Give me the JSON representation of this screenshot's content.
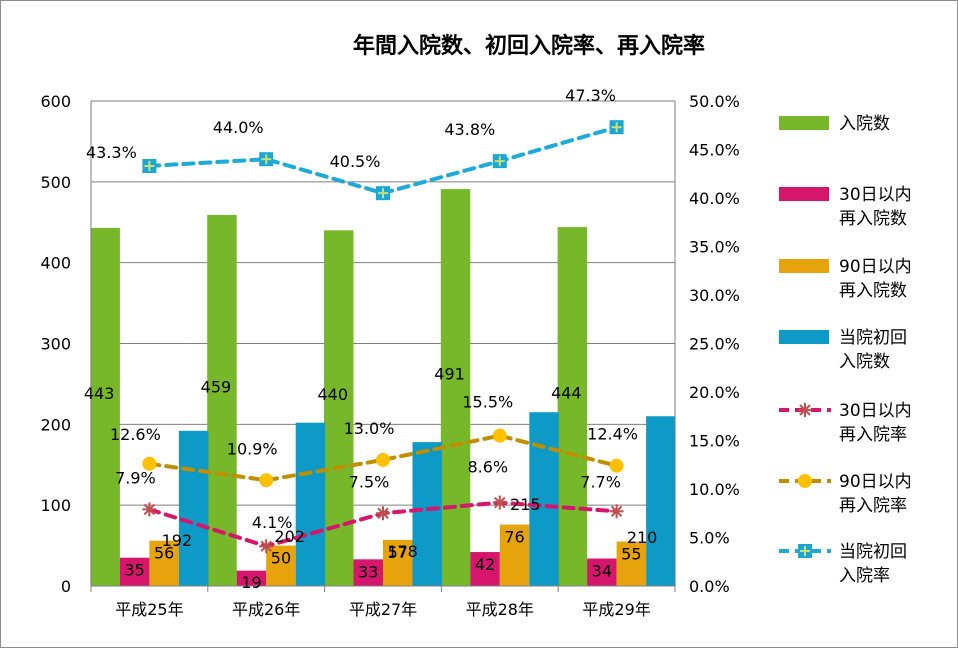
{
  "chart_data": {
    "type": "bar",
    "title": "年間入院数、初回入院率、再入院率",
    "categories": [
      "平成25年",
      "平成26年",
      "平成27年",
      "平成28年",
      "平成29年"
    ],
    "y_left": {
      "min": 0,
      "max": 600,
      "step": 100,
      "ticks": [
        "0",
        "100",
        "200",
        "300",
        "400",
        "500",
        "600"
      ]
    },
    "y_right": {
      "min": 0,
      "max": 50,
      "step": 5,
      "ticks": [
        "0.0%",
        "5.0%",
        "10.0%",
        "15.0%",
        "20.0%",
        "25.0%",
        "30.0%",
        "35.0%",
        "40.0%",
        "45.0%",
        "50.0%"
      ]
    },
    "grid": true,
    "legend_position": "right",
    "bar_series": [
      {
        "name": "入院数",
        "legend_lines": [
          "入院数"
        ],
        "color": "#76b82a",
        "values": [
          443,
          459,
          440,
          491,
          444
        ],
        "labels": [
          "443",
          "459",
          "440",
          "491",
          "444"
        ]
      },
      {
        "name": "30日以内再入院数",
        "legend_lines": [
          "30日以内",
          "再入院数"
        ],
        "color": "#d6156d",
        "values": [
          35,
          19,
          33,
          42,
          34
        ],
        "labels": [
          "35",
          "19",
          "33",
          "42",
          "34"
        ]
      },
      {
        "name": "90日以内再入院数",
        "legend_lines": [
          "90日以内",
          "再入院数"
        ],
        "color": "#e6a30b",
        "values": [
          56,
          50,
          57,
          76,
          55
        ],
        "labels": [
          "56",
          "50",
          "57",
          "76",
          "55"
        ]
      },
      {
        "name": "当院初回入院数",
        "legend_lines": [
          "当院初回",
          "入院数"
        ],
        "color": "#0e9ac6",
        "values": [
          192,
          202,
          178,
          215,
          210
        ],
        "labels": [
          "192",
          "202",
          "178",
          "215",
          "210"
        ]
      }
    ],
    "line_series": [
      {
        "name": "30日以内再入院率",
        "legend_lines": [
          "30日以内",
          "再入院率"
        ],
        "color": "#d6156d",
        "marker_color": "#c0504d",
        "marker": "star",
        "values": [
          7.9,
          4.1,
          7.5,
          8.6,
          7.7
        ],
        "labels": [
          "7.9%",
          "4.1%",
          "7.5%",
          "8.6%",
          "7.7%"
        ]
      },
      {
        "name": "90日以内再入院率",
        "legend_lines": [
          "90日以内",
          "再入院率"
        ],
        "color": "#bf8f00",
        "marker_color": "#ffc000",
        "marker": "circle",
        "values": [
          12.6,
          10.9,
          13.0,
          15.5,
          12.4
        ],
        "labels": [
          "12.6%",
          "10.9%",
          "13.0%",
          "15.5%",
          "12.4%"
        ]
      },
      {
        "name": "当院初回入院率",
        "legend_lines": [
          "当院初回",
          "入院率"
        ],
        "color": "#1fa9d8",
        "marker_color": "#1ba6d6",
        "marker": "square-plus",
        "values": [
          43.3,
          44.0,
          40.5,
          43.8,
          47.3
        ],
        "labels": [
          "43.3%",
          "44.0%",
          "40.5%",
          "43.8%",
          "47.3%"
        ]
      }
    ]
  }
}
